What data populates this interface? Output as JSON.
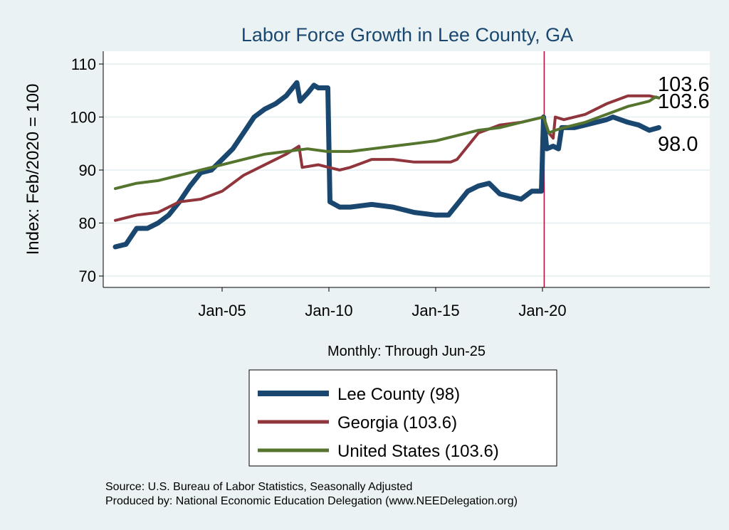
{
  "chart_data": {
    "type": "line",
    "title": "Labor Force Growth in Lee  County, GA",
    "xlabel": "Monthly: Through Jun-25",
    "ylabel": "Index: Feb/2020 = 100",
    "ylim": [
      68,
      112
    ],
    "xlim": [
      1999.4,
      2027.8
    ],
    "yticks": [
      70,
      80,
      90,
      100,
      110
    ],
    "xticks": [
      {
        "x": 2005,
        "label": "Jan-05"
      },
      {
        "x": 2010,
        "label": "Jan-10"
      },
      {
        "x": 2015,
        "label": "Jan-15"
      },
      {
        "x": 2020,
        "label": "Jan-20"
      }
    ],
    "grid": true,
    "reference_line": {
      "x": 2020.08,
      "color": "#c10534"
    },
    "series": [
      {
        "name": "Lee  County (98)",
        "color": "#1a476f",
        "width": 7,
        "end_label": "98.0",
        "points": [
          [
            2000,
            75.5
          ],
          [
            2000.5,
            76
          ],
          [
            2001,
            79
          ],
          [
            2001.5,
            79
          ],
          [
            2002,
            80
          ],
          [
            2002.5,
            81.5
          ],
          [
            2003,
            84
          ],
          [
            2003.5,
            87
          ],
          [
            2004,
            89.5
          ],
          [
            2004.5,
            90
          ],
          [
            2005,
            92
          ],
          [
            2005.5,
            94
          ],
          [
            2006,
            97
          ],
          [
            2006.5,
            100
          ],
          [
            2007,
            101.5
          ],
          [
            2007.5,
            102.5
          ],
          [
            2008,
            104
          ],
          [
            2008.5,
            106.5
          ],
          [
            2008.65,
            103
          ],
          [
            2009,
            104.5
          ],
          [
            2009.3,
            106
          ],
          [
            2009.5,
            105.5
          ],
          [
            2009.95,
            105.5
          ],
          [
            2010.05,
            84
          ],
          [
            2010.5,
            83
          ],
          [
            2011,
            83
          ],
          [
            2012,
            83.5
          ],
          [
            2013,
            83
          ],
          [
            2014,
            82
          ],
          [
            2015,
            81.5
          ],
          [
            2015.6,
            81.5
          ],
          [
            2016,
            83.5
          ],
          [
            2016.5,
            86
          ],
          [
            2017,
            87
          ],
          [
            2017.5,
            87.5
          ],
          [
            2018,
            85.5
          ],
          [
            2019,
            84.5
          ],
          [
            2019.5,
            86
          ],
          [
            2019.95,
            86
          ],
          [
            2020.05,
            100
          ],
          [
            2020.2,
            94
          ],
          [
            2020.5,
            94.5
          ],
          [
            2020.75,
            94
          ],
          [
            2020.9,
            98
          ],
          [
            2021.5,
            98
          ],
          [
            2022,
            98.5
          ],
          [
            2023,
            99.5
          ],
          [
            2023.3,
            100
          ],
          [
            2024,
            99
          ],
          [
            2024.5,
            98.5
          ],
          [
            2025,
            97.5
          ],
          [
            2025.45,
            98
          ]
        ]
      },
      {
        "name": "Georgia (103.6)",
        "color": "#90353b",
        "width": 4,
        "end_label": "103.6",
        "points": [
          [
            2000,
            80.5
          ],
          [
            2001,
            81.5
          ],
          [
            2002,
            82
          ],
          [
            2003,
            84
          ],
          [
            2004,
            84.5
          ],
          [
            2005,
            86
          ],
          [
            2006,
            89
          ],
          [
            2007,
            91
          ],
          [
            2008,
            93
          ],
          [
            2008.6,
            94.5
          ],
          [
            2008.75,
            90.5
          ],
          [
            2009.5,
            91
          ],
          [
            2010,
            90.5
          ],
          [
            2010.5,
            90
          ],
          [
            2011,
            90.5
          ],
          [
            2012,
            92
          ],
          [
            2013,
            92
          ],
          [
            2014,
            91.5
          ],
          [
            2015,
            91.5
          ],
          [
            2015.7,
            91.5
          ],
          [
            2016,
            92
          ],
          [
            2017,
            97
          ],
          [
            2018,
            98.5
          ],
          [
            2019,
            99
          ],
          [
            2020.05,
            100
          ],
          [
            2020.3,
            97
          ],
          [
            2020.5,
            96
          ],
          [
            2020.6,
            100
          ],
          [
            2021,
            99.5
          ],
          [
            2022,
            100.5
          ],
          [
            2023,
            102.5
          ],
          [
            2024,
            104
          ],
          [
            2025,
            104
          ],
          [
            2025.45,
            103.6
          ]
        ]
      },
      {
        "name": "United States (103.6)",
        "color": "#55752f",
        "width": 4,
        "end_label": "103.6",
        "points": [
          [
            2000,
            86.5
          ],
          [
            2001,
            87.5
          ],
          [
            2002,
            88
          ],
          [
            2003,
            89
          ],
          [
            2004,
            90
          ],
          [
            2005,
            91
          ],
          [
            2006,
            92
          ],
          [
            2007,
            93
          ],
          [
            2008,
            93.5
          ],
          [
            2009,
            94
          ],
          [
            2009.9,
            93.5
          ],
          [
            2010.5,
            93.5
          ],
          [
            2011,
            93.5
          ],
          [
            2012,
            94
          ],
          [
            2013,
            94.5
          ],
          [
            2014,
            95
          ],
          [
            2015,
            95.5
          ],
          [
            2016,
            96.5
          ],
          [
            2017,
            97.5
          ],
          [
            2018,
            98
          ],
          [
            2019,
            99
          ],
          [
            2020.05,
            100
          ],
          [
            2020.3,
            97
          ],
          [
            2020.6,
            97.5
          ],
          [
            2021,
            98
          ],
          [
            2022,
            99
          ],
          [
            2023,
            100.5
          ],
          [
            2024,
            102
          ],
          [
            2025,
            103
          ],
          [
            2025.3,
            103.8
          ],
          [
            2025.45,
            103.6
          ]
        ]
      }
    ],
    "legend_placement": "bottom",
    "notes": [
      "Source: U.S. Bureau of Labor Statistics, Seasonally Adjusted",
      "Produced by: National Economic Education Delegation (www.NEEDelegation.org)"
    ]
  }
}
